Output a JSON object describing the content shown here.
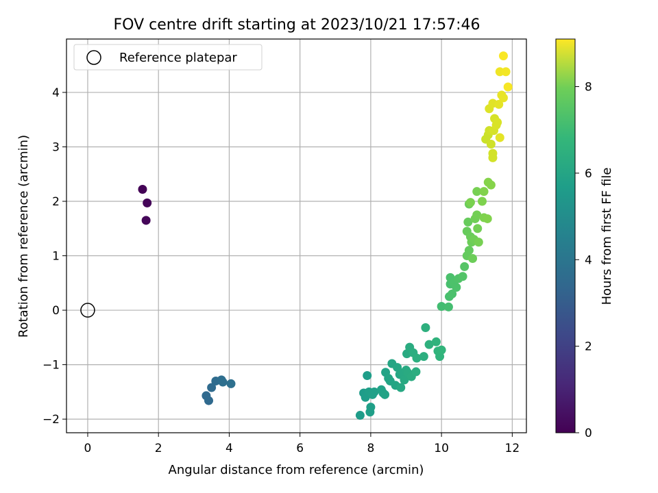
{
  "chart_data": {
    "type": "scatter",
    "title": "FOV centre drift starting at 2023/10/21 17:57:46",
    "xlabel": "Angular distance from reference (arcmin)",
    "ylabel": "Rotation from reference (arcmin)",
    "xlim": [
      -0.6,
      12.4
    ],
    "ylim": [
      -2.25,
      4.98
    ],
    "xticks": [
      0,
      2,
      4,
      6,
      8,
      10,
      12
    ],
    "yticks": [
      -2,
      -1,
      0,
      1,
      2,
      3,
      4
    ],
    "grid": true,
    "legend": {
      "placement": "top-left",
      "entries": [
        "Reference platepar"
      ]
    },
    "reference_point": {
      "x": 0,
      "y": 0
    },
    "colorbar": {
      "label": "Hours from first FF file",
      "min": 0,
      "max": 9.1,
      "ticks": [
        0,
        2,
        4,
        6,
        8
      ],
      "colormap": "viridis"
    },
    "points": [
      {
        "x": 1.55,
        "y": 2.22,
        "c": 0.05
      },
      {
        "x": 1.68,
        "y": 1.97,
        "c": 0.1
      },
      {
        "x": 1.65,
        "y": 1.65,
        "c": 0.15
      },
      {
        "x": 3.35,
        "y": -1.57,
        "c": 3.1
      },
      {
        "x": 3.42,
        "y": -1.66,
        "c": 3.1
      },
      {
        "x": 3.5,
        "y": -1.42,
        "c": 3.15
      },
      {
        "x": 3.62,
        "y": -1.3,
        "c": 3.2
      },
      {
        "x": 3.78,
        "y": -1.28,
        "c": 3.25
      },
      {
        "x": 3.82,
        "y": -1.32,
        "c": 3.3
      },
      {
        "x": 4.05,
        "y": -1.35,
        "c": 3.35
      },
      {
        "x": 7.7,
        "y": -1.93,
        "c": 5.0
      },
      {
        "x": 7.8,
        "y": -1.52,
        "c": 5.0
      },
      {
        "x": 7.85,
        "y": -1.6,
        "c": 5.05
      },
      {
        "x": 7.9,
        "y": -1.2,
        "c": 5.05
      },
      {
        "x": 7.95,
        "y": -1.5,
        "c": 5.1
      },
      {
        "x": 7.98,
        "y": -1.87,
        "c": 5.1
      },
      {
        "x": 8.0,
        "y": -1.78,
        "c": 5.1
      },
      {
        "x": 8.05,
        "y": -1.55,
        "c": 5.15
      },
      {
        "x": 8.1,
        "y": -1.5,
        "c": 5.15
      },
      {
        "x": 8.3,
        "y": -1.46,
        "c": 5.2
      },
      {
        "x": 8.35,
        "y": -1.52,
        "c": 5.2
      },
      {
        "x": 8.4,
        "y": -1.55,
        "c": 5.25
      },
      {
        "x": 8.42,
        "y": -1.14,
        "c": 5.25
      },
      {
        "x": 8.5,
        "y": -1.25,
        "c": 5.3
      },
      {
        "x": 8.55,
        "y": -1.3,
        "c": 5.3
      },
      {
        "x": 8.6,
        "y": -0.98,
        "c": 5.35
      },
      {
        "x": 8.7,
        "y": -1.38,
        "c": 5.35
      },
      {
        "x": 8.75,
        "y": -1.05,
        "c": 5.4
      },
      {
        "x": 8.82,
        "y": -1.18,
        "c": 5.4
      },
      {
        "x": 8.85,
        "y": -1.42,
        "c": 5.45
      },
      {
        "x": 8.9,
        "y": -1.15,
        "c": 5.45
      },
      {
        "x": 8.95,
        "y": -1.28,
        "c": 5.5
      },
      {
        "x": 9.0,
        "y": -1.1,
        "c": 5.5
      },
      {
        "x": 9.02,
        "y": -0.8,
        "c": 5.55
      },
      {
        "x": 9.05,
        "y": -1.15,
        "c": 5.55
      },
      {
        "x": 9.1,
        "y": -0.68,
        "c": 5.6
      },
      {
        "x": 9.15,
        "y": -1.22,
        "c": 5.6
      },
      {
        "x": 9.2,
        "y": -0.78,
        "c": 5.65
      },
      {
        "x": 9.28,
        "y": -1.13,
        "c": 5.65
      },
      {
        "x": 9.3,
        "y": -0.88,
        "c": 5.7
      },
      {
        "x": 9.5,
        "y": -0.85,
        "c": 5.7
      },
      {
        "x": 9.55,
        "y": -0.32,
        "c": 5.75
      },
      {
        "x": 9.65,
        "y": -0.63,
        "c": 5.8
      },
      {
        "x": 9.85,
        "y": -0.58,
        "c": 5.85
      },
      {
        "x": 9.9,
        "y": -0.75,
        "c": 5.9
      },
      {
        "x": 9.95,
        "y": -0.85,
        "c": 5.9
      },
      {
        "x": 10.0,
        "y": -0.73,
        "c": 5.95
      },
      {
        "x": 10.0,
        "y": 0.07,
        "c": 6.3
      },
      {
        "x": 10.2,
        "y": 0.06,
        "c": 6.35
      },
      {
        "x": 10.22,
        "y": 0.25,
        "c": 6.4
      },
      {
        "x": 10.25,
        "y": 0.48,
        "c": 6.4
      },
      {
        "x": 10.25,
        "y": 0.6,
        "c": 6.45
      },
      {
        "x": 10.3,
        "y": 0.3,
        "c": 6.45
      },
      {
        "x": 10.35,
        "y": 0.5,
        "c": 6.5
      },
      {
        "x": 10.42,
        "y": 0.42,
        "c": 6.5
      },
      {
        "x": 10.48,
        "y": 0.58,
        "c": 6.55
      },
      {
        "x": 10.6,
        "y": 0.62,
        "c": 6.6
      },
      {
        "x": 10.65,
        "y": 0.8,
        "c": 6.65
      },
      {
        "x": 10.72,
        "y": 1.0,
        "c": 6.9
      },
      {
        "x": 10.78,
        "y": 1.1,
        "c": 6.9
      },
      {
        "x": 10.72,
        "y": 1.45,
        "c": 6.95
      },
      {
        "x": 10.75,
        "y": 1.62,
        "c": 6.95
      },
      {
        "x": 10.78,
        "y": 1.95,
        "c": 7.0
      },
      {
        "x": 10.82,
        "y": 1.35,
        "c": 7.0
      },
      {
        "x": 10.85,
        "y": 1.25,
        "c": 7.05
      },
      {
        "x": 10.88,
        "y": 0.95,
        "c": 7.05
      },
      {
        "x": 10.92,
        "y": 1.3,
        "c": 7.1
      },
      {
        "x": 10.95,
        "y": 1.68,
        "c": 7.1
      },
      {
        "x": 11.0,
        "y": 1.75,
        "c": 7.15
      },
      {
        "x": 11.02,
        "y": 1.5,
        "c": 7.15
      },
      {
        "x": 11.05,
        "y": 1.25,
        "c": 7.2
      },
      {
        "x": 11.0,
        "y": 2.18,
        "c": 7.2
      },
      {
        "x": 11.2,
        "y": 1.7,
        "c": 7.3
      },
      {
        "x": 11.15,
        "y": 2.0,
        "c": 7.3
      },
      {
        "x": 11.2,
        "y": 2.18,
        "c": 7.35
      },
      {
        "x": 11.3,
        "y": 1.68,
        "c": 7.35
      },
      {
        "x": 11.32,
        "y": 2.35,
        "c": 7.4
      },
      {
        "x": 11.4,
        "y": 2.3,
        "c": 7.4
      },
      {
        "x": 10.82,
        "y": 1.98,
        "c": 7.25
      },
      {
        "x": 11.25,
        "y": 3.14,
        "c": 8.4
      },
      {
        "x": 11.32,
        "y": 3.22,
        "c": 8.4
      },
      {
        "x": 11.35,
        "y": 3.3,
        "c": 8.45
      },
      {
        "x": 11.4,
        "y": 3.05,
        "c": 8.45
      },
      {
        "x": 11.45,
        "y": 2.88,
        "c": 8.5
      },
      {
        "x": 11.45,
        "y": 2.8,
        "c": 8.5
      },
      {
        "x": 11.48,
        "y": 3.3,
        "c": 8.55
      },
      {
        "x": 11.5,
        "y": 3.52,
        "c": 8.55
      },
      {
        "x": 11.55,
        "y": 3.4,
        "c": 8.6
      },
      {
        "x": 11.58,
        "y": 3.45,
        "c": 8.6
      },
      {
        "x": 11.35,
        "y": 3.7,
        "c": 8.65
      },
      {
        "x": 11.45,
        "y": 3.8,
        "c": 8.7
      },
      {
        "x": 11.62,
        "y": 3.78,
        "c": 8.75
      },
      {
        "x": 11.65,
        "y": 3.17,
        "c": 8.75
      },
      {
        "x": 11.7,
        "y": 3.95,
        "c": 8.8
      },
      {
        "x": 11.75,
        "y": 3.9,
        "c": 8.8
      },
      {
        "x": 11.65,
        "y": 4.38,
        "c": 8.9
      },
      {
        "x": 11.82,
        "y": 4.38,
        "c": 8.95
      },
      {
        "x": 11.88,
        "y": 4.1,
        "c": 9.0
      },
      {
        "x": 11.75,
        "y": 4.67,
        "c": 9.05
      }
    ]
  }
}
